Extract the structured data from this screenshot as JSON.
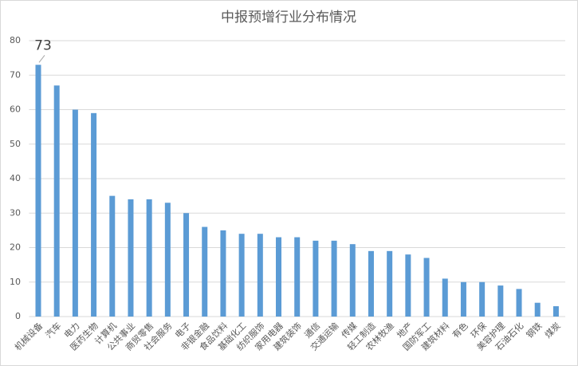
{
  "chart_data": {
    "type": "bar",
    "title": "中报预增行业分布情况",
    "categories": [
      "机械设备",
      "汽车",
      "电力",
      "医药生物",
      "计算机",
      "公共事业",
      "商贸零售",
      "社会服务",
      "电子",
      "非银金融",
      "食品饮料",
      "基础化工",
      "纺织服饰",
      "家用电器",
      "建筑装饰",
      "通信",
      "交通运输",
      "传媒",
      "轻工制造",
      "农林牧渔",
      "地产",
      "国防军工",
      "建筑材料",
      "有色",
      "环保",
      "美容护理",
      "石油石化",
      "钢铁",
      "煤炭"
    ],
    "values": [
      73,
      67,
      60,
      59,
      35,
      34,
      34,
      33,
      30,
      26,
      25,
      24,
      24,
      23,
      23,
      22,
      22,
      21,
      19,
      19,
      18,
      17,
      11,
      10,
      10,
      9,
      8,
      4,
      3
    ],
    "color": "#5b9bd5",
    "ylim": [
      0,
      80
    ],
    "yticks": [
      0,
      10,
      20,
      30,
      40,
      50,
      60,
      70,
      80
    ],
    "grid": true
  }
}
